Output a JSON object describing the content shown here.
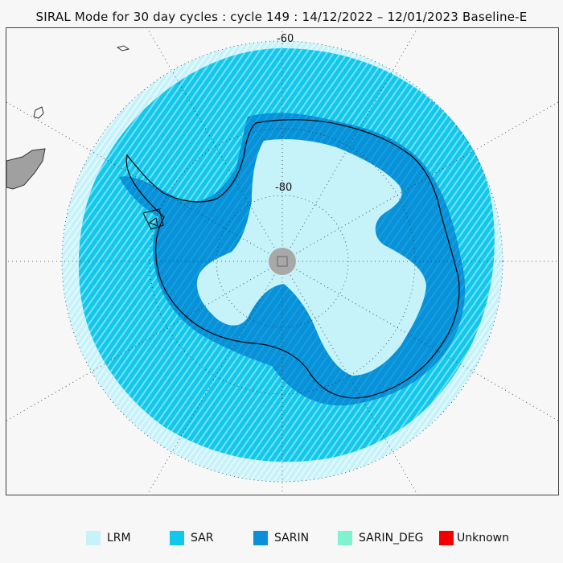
{
  "title": "SIRAL Mode for 30 day cycles : cycle 149 : 14/12/2022 – 12/01/2023 Baseline-E",
  "map": {
    "projection": "south-polar-stereographic",
    "latitude_labels": [
      "-60",
      "-80"
    ],
    "pole_marker": "data gap at pole",
    "colors": {
      "lrm": "#c6f2fa",
      "sar": "#12c8ea",
      "sarin": "#0a8fd8",
      "sarin_deg": "#7ff2d2",
      "unknown": "#f20000",
      "land": "#a0a0a0",
      "background": "#f7f7f7"
    }
  },
  "legend": {
    "items": [
      {
        "label": "LRM",
        "color": "#c6f2fa"
      },
      {
        "label": "SAR",
        "color": "#12c8ea"
      },
      {
        "label": "SARIN",
        "color": "#0a8fd8"
      },
      {
        "label": "SARIN_DEG",
        "color": "#7ff2d2"
      },
      {
        "label": "Unknown",
        "color": "#f20000"
      }
    ]
  }
}
